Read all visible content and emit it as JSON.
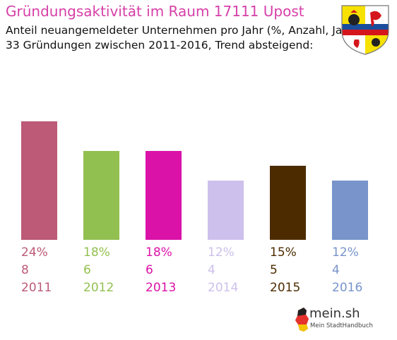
{
  "header": {
    "title": "Gründungsaktivität im Raum 17111 Upost",
    "subtitle_line1": "Anteil neuangemeldeter Unternehmen pro Jahr (%, Anzahl, Jahr)",
    "subtitle_line2": "33 Gründungen zwischen 2011-2016, Trend absteigend:"
  },
  "logo": {
    "text": "mein.sh",
    "tagline": "Mein StadtHandbuch",
    "icon": "germany-map-icon"
  },
  "crest": {
    "icon": "mecklenburg-vorpommern-coat-of-arms-icon",
    "colors": [
      "#f7e100",
      "#ffffff",
      "#1a4d9c",
      "#d4161c",
      "#000000"
    ]
  },
  "chart_data": {
    "type": "bar",
    "categories": [
      "2011",
      "2012",
      "2013",
      "2014",
      "2015",
      "2016"
    ],
    "percent_labels": [
      "24%",
      "18%",
      "18%",
      "12%",
      "15%",
      "12%"
    ],
    "values": [
      8,
      6,
      6,
      4,
      5,
      4
    ],
    "colors": [
      "#bc5a78",
      "#92c050",
      "#db12a8",
      "#cdc0ec",
      "#4d2b00",
      "#7894cb"
    ],
    "ylim": [
      0,
      8
    ],
    "grid": false,
    "legend": "none"
  }
}
